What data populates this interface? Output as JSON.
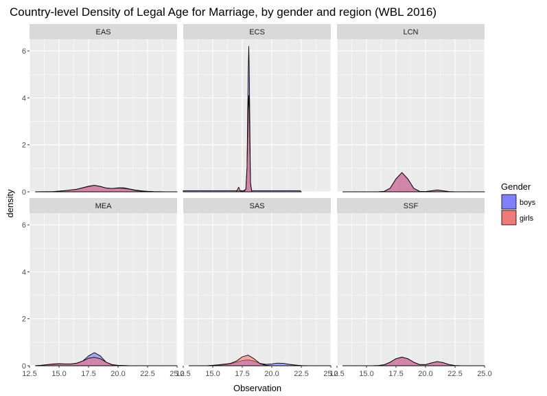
{
  "chart_data": {
    "type": "area",
    "subtype": "faceted-density",
    "title": "Country-level Density of Legal Age for Marriage, by gender and region (WBL 2016)",
    "xlabel": "Observation",
    "ylabel": "density",
    "xlim": [
      12.5,
      25.0
    ],
    "ylim": [
      0,
      6.5
    ],
    "xticks": [
      "12.5",
      "15.0",
      "17.5",
      "20.0",
      "22.5",
      "25.0"
    ],
    "yticks": [
      "0",
      "2",
      "4",
      "6"
    ],
    "legend": {
      "title": "Gender",
      "position": "right",
      "items": [
        {
          "label": "boys",
          "color": "#8080ff"
        },
        {
          "label": "girls",
          "color": "#f07a7a"
        }
      ]
    },
    "colors": {
      "boys_fill": "#6b6bff",
      "girls_fill": "#f56b6b",
      "overlap_fill": "#aa3467",
      "panel_bg": "#ebebeb",
      "strip_bg": "#d9d9d9",
      "grid": "#ffffff"
    },
    "panels": [
      {
        "name": "EAS",
        "series": [
          {
            "name": "boys",
            "x": [
              13.0,
              14.5,
              15.5,
              16.5,
              17.5,
              18.0,
              18.5,
              19.0,
              19.5,
              20.0,
              20.5,
              21.0,
              21.5,
              22.0,
              22.5,
              23.0,
              24.0,
              25.0
            ],
            "y": [
              0,
              0.01,
              0.05,
              0.1,
              0.22,
              0.27,
              0.22,
              0.16,
              0.14,
              0.17,
              0.17,
              0.12,
              0.07,
              0.04,
              0.02,
              0.01,
              0,
              0
            ]
          },
          {
            "name": "girls",
            "x": [
              13.0,
              14.5,
              15.5,
              16.5,
              17.5,
              18.0,
              18.5,
              19.0,
              19.5,
              20.0,
              20.5,
              21.0,
              21.5,
              22.0,
              22.5,
              23.0,
              24.0,
              25.0
            ],
            "y": [
              0,
              0.01,
              0.05,
              0.11,
              0.24,
              0.28,
              0.23,
              0.16,
              0.14,
              0.16,
              0.15,
              0.11,
              0.06,
              0.03,
              0.02,
              0.01,
              0,
              0
            ]
          }
        ]
      },
      {
        "name": "ECS",
        "series": [
          {
            "name": "boys",
            "x": [
              12.5,
              16.5,
              17.0,
              17.2,
              17.4,
              17.6,
              17.8,
              17.9,
              18.0,
              18.05,
              18.1,
              18.2,
              18.3,
              18.5,
              22.4,
              22.5
            ],
            "y": [
              0.05,
              0.05,
              0.05,
              0.05,
              0.05,
              0.05,
              0.1,
              1.0,
              5.0,
              6.2,
              5.0,
              0.3,
              0.05,
              0.05,
              0.05,
              0
            ]
          },
          {
            "name": "girls",
            "x": [
              12.5,
              16.5,
              17.0,
              17.1,
              17.2,
              17.3,
              17.6,
              17.8,
              17.9,
              18.0,
              18.05,
              18.1,
              18.2,
              18.3,
              18.5,
              22.4,
              22.5
            ],
            "y": [
              0,
              0,
              0,
              0.1,
              0.2,
              0.05,
              0,
              0.1,
              1.0,
              3.5,
              4.1,
              3.5,
              0.4,
              0,
              0,
              0,
              0
            ]
          }
        ]
      },
      {
        "name": "LCN",
        "series": [
          {
            "name": "boys",
            "x": [
              13.0,
              16.0,
              16.5,
              17.0,
              17.5,
              18.0,
              18.5,
              19.0,
              19.5,
              20.0,
              20.5,
              21.0,
              21.5,
              22.0,
              22.5,
              23.0,
              25.0
            ],
            "y": [
              0,
              0,
              0.02,
              0.15,
              0.55,
              0.82,
              0.55,
              0.15,
              0.02,
              0.01,
              0.04,
              0.08,
              0.04,
              0.01,
              0,
              0,
              0
            ]
          },
          {
            "name": "girls",
            "x": [
              13.0,
              16.0,
              16.5,
              17.0,
              17.5,
              18.0,
              18.5,
              19.0,
              19.5,
              20.0,
              20.5,
              21.0,
              21.5,
              22.0,
              22.5,
              23.0,
              25.0
            ],
            "y": [
              0,
              0,
              0.02,
              0.15,
              0.55,
              0.82,
              0.55,
              0.15,
              0.02,
              0.01,
              0.04,
              0.08,
              0.04,
              0.01,
              0,
              0,
              0
            ]
          }
        ]
      },
      {
        "name": "MEA",
        "series": [
          {
            "name": "boys",
            "x": [
              13.0,
              13.5,
              14.0,
              14.5,
              15.0,
              15.5,
              16.0,
              16.5,
              17.0,
              17.5,
              18.0,
              18.5,
              19.0,
              19.5,
              20.0,
              21.0,
              22.0,
              25.0
            ],
            "y": [
              0,
              0.02,
              0.04,
              0.06,
              0.07,
              0.07,
              0.07,
              0.1,
              0.2,
              0.42,
              0.56,
              0.42,
              0.15,
              0.03,
              0.01,
              0,
              0,
              0
            ]
          },
          {
            "name": "girls",
            "x": [
              13.0,
              13.5,
              14.0,
              14.5,
              15.0,
              15.5,
              16.0,
              16.5,
              17.0,
              17.5,
              18.0,
              18.5,
              19.0,
              19.5,
              20.0,
              21.0,
              22.0,
              25.0
            ],
            "y": [
              0,
              0.02,
              0.05,
              0.08,
              0.09,
              0.08,
              0.08,
              0.11,
              0.2,
              0.32,
              0.36,
              0.3,
              0.15,
              0.05,
              0.02,
              0,
              0,
              0
            ]
          }
        ]
      },
      {
        "name": "SAS",
        "series": [
          {
            "name": "boys",
            "x": [
              13.0,
              14.5,
              15.0,
              15.5,
              16.0,
              16.5,
              17.0,
              17.5,
              18.0,
              18.5,
              19.0,
              19.5,
              20.0,
              20.5,
              21.0,
              21.5,
              22.0,
              22.5,
              23.0,
              25.0
            ],
            "y": [
              0,
              0,
              0.01,
              0.02,
              0.04,
              0.08,
              0.15,
              0.22,
              0.25,
              0.2,
              0.1,
              0.06,
              0.08,
              0.11,
              0.1,
              0.06,
              0.03,
              0.01,
              0,
              0
            ]
          },
          {
            "name": "girls",
            "x": [
              13.0,
              14.5,
              15.0,
              15.5,
              16.0,
              16.5,
              17.0,
              17.5,
              18.0,
              18.5,
              19.0,
              19.5,
              20.0,
              20.5,
              21.0,
              21.5,
              22.0,
              22.5,
              23.0,
              25.0
            ],
            "y": [
              0,
              0,
              0.02,
              0.04,
              0.07,
              0.1,
              0.2,
              0.38,
              0.45,
              0.3,
              0.09,
              0.02,
              0,
              0,
              0,
              0,
              0,
              0,
              0,
              0
            ]
          }
        ]
      },
      {
        "name": "SSF",
        "series": [
          {
            "name": "boys",
            "x": [
              13.0,
              15.5,
              16.0,
              16.5,
              17.0,
              17.5,
              18.0,
              18.5,
              19.0,
              19.5,
              20.0,
              20.5,
              21.0,
              21.5,
              22.0,
              22.5,
              23.0,
              25.0
            ],
            "y": [
              0,
              0,
              0.01,
              0.04,
              0.15,
              0.3,
              0.37,
              0.3,
              0.15,
              0.05,
              0.05,
              0.12,
              0.18,
              0.13,
              0.05,
              0.01,
              0,
              0
            ]
          },
          {
            "name": "girls",
            "x": [
              13.0,
              15.5,
              16.0,
              16.5,
              17.0,
              17.5,
              18.0,
              18.5,
              19.0,
              19.5,
              20.0,
              20.5,
              21.0,
              21.5,
              22.0,
              22.5,
              23.0,
              25.0
            ],
            "y": [
              0,
              0,
              0.01,
              0.04,
              0.15,
              0.3,
              0.37,
              0.3,
              0.15,
              0.05,
              0.05,
              0.12,
              0.18,
              0.13,
              0.05,
              0.01,
              0,
              0
            ]
          }
        ]
      }
    ]
  }
}
